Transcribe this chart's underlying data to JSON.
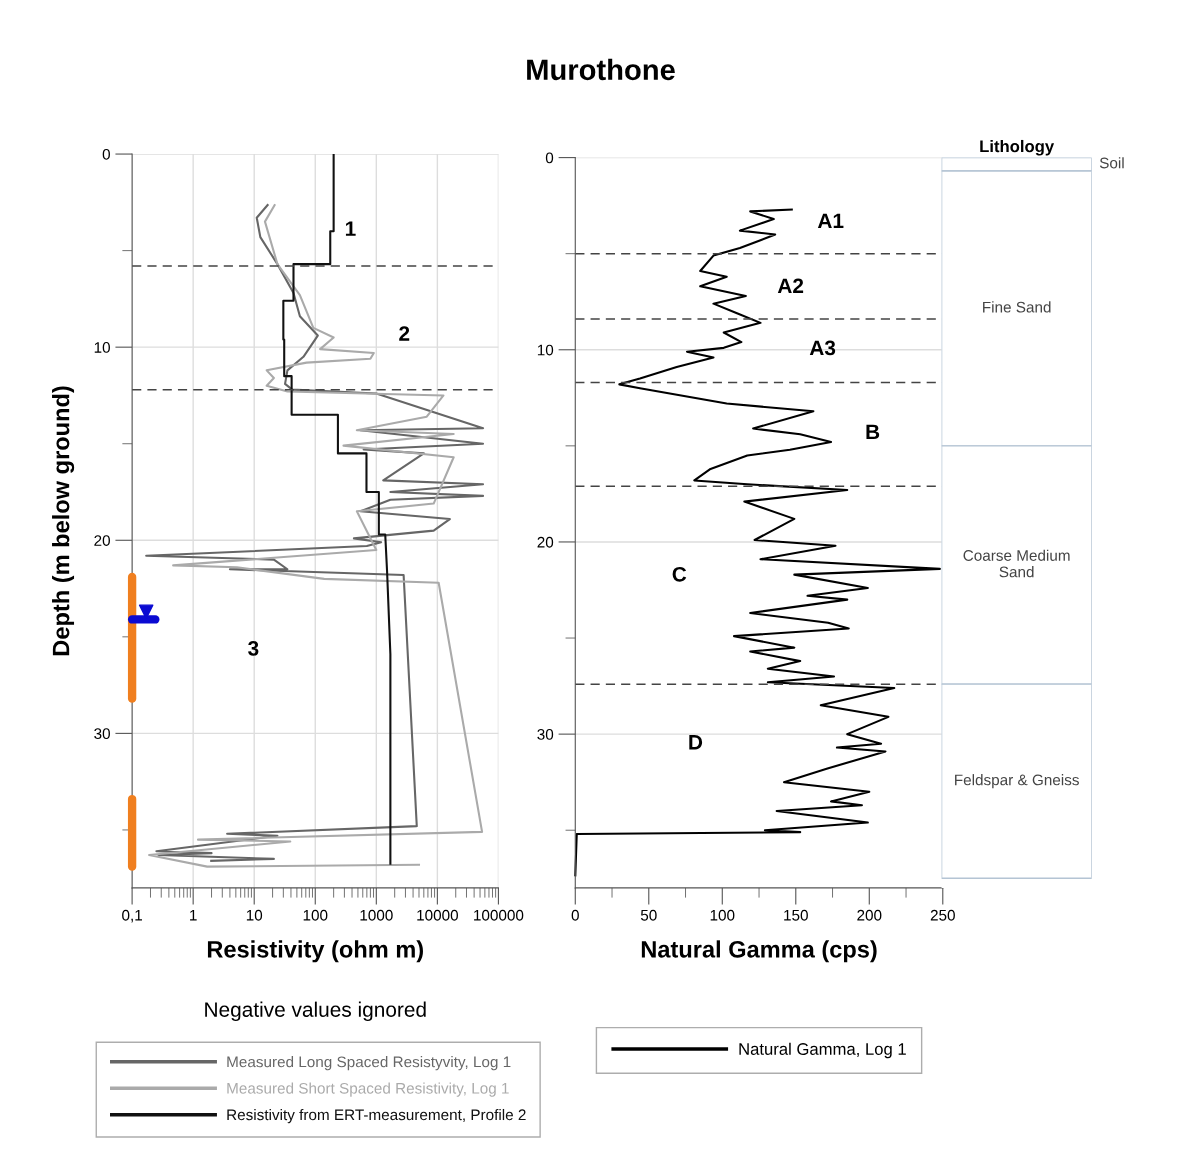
{
  "chart_data": [
    {
      "type": "line",
      "xlabel": "Resistivity (ohm m)",
      "ylabel": "Depth (m below ground)",
      "log": "x",
      "xlim": [
        0.1,
        100000
      ],
      "xticks": [
        {
          "value": 0.1,
          "label": "0,1"
        },
        1,
        10,
        100,
        1000,
        10000,
        100000
      ],
      "ylim": [
        38,
        0
      ],
      "yticks": [
        0,
        {
          "value": 5,
          "label": null
        },
        10,
        {
          "value": 15,
          "label": null
        },
        20,
        {
          "value": 25,
          "label": null
        },
        30,
        {
          "value": 35,
          "label": null
        }
      ],
      "grid": true,
      "legend": "bottom",
      "line_style": "solid",
      "series": [
        {
          "name": "Measured Long Spaced Resistyvity, Log 1",
          "color": "#666666",
          "x": [
            17,
            11,
            12.6,
            24,
            44,
            56,
            110,
            64,
            35,
            32,
            42,
            1000,
            56000,
            550,
            56000,
            620,
            6000,
            1300,
            56000,
            1700,
            56000,
            1700,
            550,
            16000,
            8700,
            430,
            1200,
            700,
            0.17,
            21,
            35,
            4.0,
            2800,
            4600,
            3.6,
            24,
            0.25,
            2.0,
            0.27,
            21,
            1.9
          ],
          "values": [
            2.6,
            3.3,
            4.3,
            5.7,
            7.2,
            8.4,
            9.4,
            10.5,
            11.2,
            11.9,
            12.2,
            12.4,
            14.2,
            14.3,
            15.0,
            15.3,
            15.5,
            16.9,
            17.1,
            17.5,
            17.7,
            17.9,
            18.5,
            18.9,
            19.5,
            19.9,
            20.1,
            20.3,
            20.8,
            21.0,
            21.5,
            21.5,
            21.8,
            34.8,
            35.2,
            35.3,
            36.1,
            36.2,
            36.3,
            36.5,
            36.6
          ]
        },
        {
          "name": "Measured Short Spaced Resistivity, Log 1",
          "color": "#aaaaaa",
          "x": [
            22,
            15,
            24,
            56,
            93,
            200,
            120,
            910,
            800,
            72,
            16,
            21,
            16,
            35,
            12600,
            6700,
            480,
            18500,
            290,
            18500,
            8700,
            480,
            1000,
            0.47,
            5.2,
            140,
            10500,
            54000,
            1.2,
            39,
            0.19,
            1.7,
            5200
          ],
          "values": [
            2.6,
            3.5,
            5.7,
            7.3,
            9.0,
            9.5,
            10.1,
            10.3,
            10.6,
            10.8,
            11.2,
            11.6,
            12.0,
            12.3,
            12.5,
            13.6,
            14.3,
            14.5,
            15.1,
            15.7,
            18.1,
            18.5,
            20.5,
            21.3,
            21.4,
            22.0,
            22.2,
            35.1,
            35.5,
            35.6,
            36.3,
            36.9,
            36.8
          ]
        },
        {
          "name": "Resistivity from ERT-measurement, Profile 2",
          "color": "#111111",
          "x": [
            200,
            200,
            176,
            176,
            44,
            44,
            30,
            30,
            31,
            31,
            41,
            41,
            235,
            235,
            690,
            690,
            1100,
            1100,
            1400,
            1500,
            1700,
            1700
          ],
          "values": [
            0,
            4.0,
            4.0,
            5.7,
            5.7,
            7.6,
            7.6,
            9.6,
            9.6,
            11.5,
            11.5,
            13.5,
            13.5,
            15.5,
            15.5,
            17.5,
            17.5,
            19.7,
            19.7,
            21.6,
            25.9,
            36.8
          ]
        },
        {
          "color": "#f07f1f",
          "x": [
            0.1,
            0.1
          ],
          "values": [
            21.9,
            28.2
          ]
        },
        {
          "color": "#f07f1f",
          "x": [
            0.1,
            0.1
          ],
          "values": [
            33.4,
            36.9
          ]
        },
        {
          "color": "#0a0ad2",
          "x": [
            0.1,
            0.24
          ],
          "values": [
            24.1,
            24.1
          ]
        },
        {
          "type": "scatter",
          "marker": "triangle",
          "color": "#0a0ad2",
          "x": [
            0.17
          ],
          "values": [
            23.7
          ]
        }
      ],
      "ref_lines": [
        {
          "axis": "y",
          "value": 5.8,
          "color": "#444444",
          "line_style": "dashed"
        },
        {
          "axis": "y",
          "value": 12.2,
          "color": "#444444",
          "line_style": "dashed"
        }
      ],
      "annotations": [
        "1",
        "2",
        "3",
        "Negative values ignored"
      ]
    },
    {
      "type": "line",
      "title": "Murothone",
      "xlabel": "Natural Gamma (cps)",
      "xlim": [
        0,
        250
      ],
      "xticks": [
        0,
        {
          "value": 25,
          "label": null
        },
        50,
        {
          "value": 75,
          "label": null
        },
        100,
        {
          "value": 125,
          "label": null
        },
        150,
        {
          "value": 175,
          "label": null
        },
        200,
        {
          "value": 225,
          "label": null
        },
        250
      ],
      "ylim": [
        38,
        0
      ],
      "yticks": [
        0,
        {
          "value": 5,
          "label": null
        },
        10,
        {
          "value": 15,
          "label": null
        },
        20,
        {
          "value": 25,
          "label": null
        },
        30,
        {
          "value": 35,
          "label": null
        }
      ],
      "grid": "y",
      "legend": "bottom",
      "line_style": "solid",
      "series": [
        {
          "name": "Natural Gamma, Log 1",
          "color": "#000000",
          "x": [
            148,
            119,
            135,
            112,
            136,
            126,
            112,
            94,
            85,
            103,
            85,
            116,
            94,
            110,
            126,
            101,
            113,
            101,
            76,
            94,
            69,
            44,
            30,
            44,
            103,
            162,
            121,
            153,
            174,
            146,
            117,
            92,
            81,
            117,
            185,
            115,
            149,
            122,
            177,
            126,
            248,
            149,
            199,
            158,
            185,
            119,
            172,
            186,
            108,
            149,
            119,
            153,
            131,
            176,
            131,
            217,
            167,
            213,
            185,
            208,
            178,
            211,
            171,
            142,
            200,
            174,
            195,
            137,
            199,
            129,
            153,
            1,
            0
          ],
          "values": [
            2.7,
            2.8,
            3.2,
            3.8,
            4.0,
            4.3,
            4.7,
            5.1,
            5.9,
            6.2,
            6.7,
            7.2,
            7.6,
            8.1,
            8.6,
            9.1,
            9.6,
            9.9,
            10.1,
            10.4,
            10.9,
            11.5,
            11.8,
            12.0,
            12.8,
            13.2,
            14.1,
            14.4,
            14.8,
            15.2,
            15.5,
            16.2,
            16.8,
            17.0,
            17.3,
            17.9,
            18.8,
            19.9,
            20.2,
            20.9,
            21.4,
            21.7,
            22.4,
            22.8,
            23.0,
            23.7,
            24.2,
            24.5,
            24.9,
            25.5,
            25.7,
            26.2,
            26.6,
            27.0,
            27.3,
            27.6,
            28.5,
            29.1,
            30.0,
            30.5,
            30.7,
            30.9,
            31.8,
            32.5,
            33.0,
            33.5,
            33.7,
            34.0,
            34.6,
            35.0,
            35.1,
            35.2,
            37.4
          ]
        }
      ],
      "ref_lines": [
        {
          "axis": "y",
          "value": 5.0,
          "color": "#444444",
          "line_style": "dashed"
        },
        {
          "axis": "y",
          "value": 8.4,
          "color": "#444444",
          "line_style": "dashed"
        },
        {
          "axis": "y",
          "value": 11.7,
          "color": "#444444",
          "line_style": "dashed"
        },
        {
          "axis": "y",
          "value": 17.1,
          "color": "#444444",
          "line_style": "dashed"
        },
        {
          "axis": "y",
          "value": 27.4,
          "color": "#444444",
          "line_style": "dashed"
        }
      ],
      "annotations": [
        "A1",
        "A2",
        "A3",
        "B",
        "C",
        "D"
      ]
    },
    {
      "type": "bar",
      "title": "Lithology",
      "stacked": true,
      "categories": [
        null
      ],
      "ylim": [
        38,
        0
      ],
      "tick_labels": false,
      "series": [
        {
          "name": "Soil",
          "color": "#ffffff",
          "values": [
            0.7
          ]
        },
        {
          "name": "Fine Sand",
          "color": "#ffffff",
          "values": [
            14.3
          ]
        },
        {
          "name": "Coarse Medium Sand",
          "color": "#ffffff",
          "values": [
            12.4
          ]
        },
        {
          "name": "Feldspar & Gneiss",
          "color": "#ffffff",
          "values": [
            10.1
          ]
        }
      ]
    }
  ]
}
